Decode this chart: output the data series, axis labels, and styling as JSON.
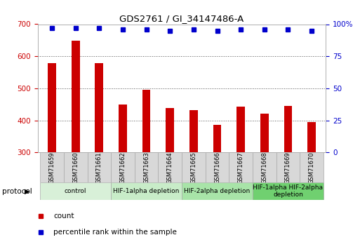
{
  "title": "GDS2761 / GI_34147486-A",
  "samples": [
    "GSM71659",
    "GSM71660",
    "GSM71661",
    "GSM71662",
    "GSM71663",
    "GSM71664",
    "GSM71665",
    "GSM71666",
    "GSM71667",
    "GSM71668",
    "GSM71669",
    "GSM71670"
  ],
  "counts": [
    578,
    648,
    578,
    450,
    495,
    438,
    433,
    385,
    442,
    422,
    445,
    395
  ],
  "percentile_ranks": [
    97,
    97,
    97,
    96,
    96,
    95,
    96,
    95,
    96,
    96,
    96,
    95
  ],
  "ylim_left": [
    300,
    700
  ],
  "ylim_right": [
    0,
    100
  ],
  "yticks_left": [
    300,
    400,
    500,
    600,
    700
  ],
  "yticks_right": [
    0,
    25,
    50,
    75,
    100
  ],
  "bar_color": "#cc0000",
  "dot_color": "#0000cc",
  "bar_width": 0.35,
  "groups": [
    {
      "label": "control",
      "start": 0,
      "end": 2,
      "color": "#d8f0d8"
    },
    {
      "label": "HIF-1alpha depletion",
      "start": 3,
      "end": 5,
      "color": "#c8ecc8"
    },
    {
      "label": "HIF-2alpha depletion",
      "start": 6,
      "end": 8,
      "color": "#a8e4a8"
    },
    {
      "label": "HIF-1alpha HIF-2alpha\ndepletion",
      "start": 9,
      "end": 11,
      "color": "#70d070"
    }
  ],
  "legend_items": [
    {
      "label": "count",
      "color": "#cc0000"
    },
    {
      "label": "percentile rank within the sample",
      "color": "#0000cc"
    }
  ],
  "protocol_label": "protocol",
  "tick_label_color_left": "#cc0000",
  "tick_label_color_right": "#0000cc",
  "sample_box_color": "#d8d8d8"
}
